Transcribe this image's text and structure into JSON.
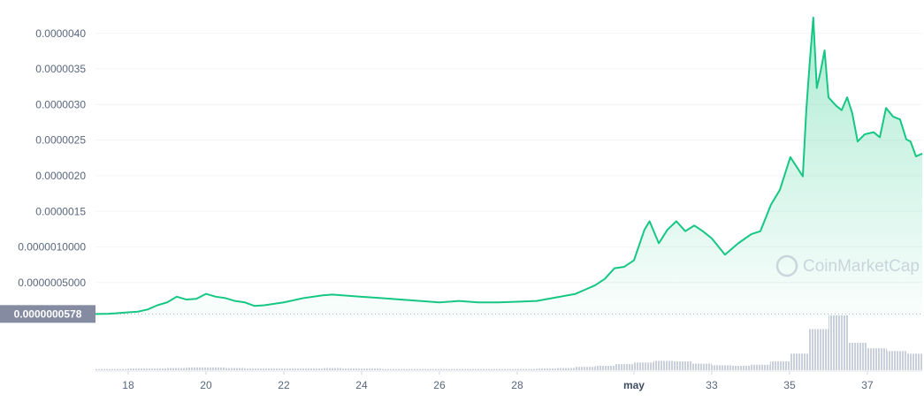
{
  "chart_data": {
    "type": "line",
    "x": [
      17.16,
      17.5,
      17.75,
      18.0,
      18.25,
      18.5,
      18.75,
      19.0,
      19.25,
      19.5,
      19.75,
      20.0,
      20.25,
      20.5,
      20.75,
      21.0,
      21.25,
      21.5,
      21.75,
      22.0,
      22.5,
      23.0,
      23.25,
      23.5,
      24.0,
      24.5,
      25.0,
      25.5,
      26.0,
      26.5,
      27.0,
      27.5,
      28.0,
      28.5,
      29.0,
      29.5,
      29.75,
      30.0,
      30.25,
      30.5,
      30.75,
      31.0,
      31.27,
      31.4,
      31.64,
      31.86,
      32.09,
      32.32,
      32.55,
      32.77,
      33.0,
      33.34,
      33.68,
      34.02,
      34.25,
      34.52,
      34.75,
      35.02,
      35.2,
      35.34,
      35.43,
      35.52,
      35.61,
      35.7,
      35.8,
      35.9,
      36.0,
      36.2,
      36.34,
      36.48,
      36.61,
      36.75,
      36.93,
      37.16,
      37.32,
      37.48,
      37.66,
      37.84,
      38.0,
      38.11,
      38.25,
      38.41
    ],
    "series": [
      {
        "color": "#16c784",
        "values": [
          5.8e-08,
          6e-08,
          7e-08,
          8e-08,
          9e-08,
          1.2e-07,
          1.8e-07,
          2.2e-07,
          3e-07,
          2.6e-07,
          2.7e-07,
          3.4e-07,
          3e-07,
          2.8e-07,
          2.4e-07,
          2.2e-07,
          1.7e-07,
          1.8e-07,
          2e-07,
          2.2e-07,
          2.8e-07,
          3.2e-07,
          3.3e-07,
          3.2e-07,
          3e-07,
          2.8e-07,
          2.6e-07,
          2.4e-07,
          2.2e-07,
          2.4e-07,
          2.2e-07,
          2.2e-07,
          2.3e-07,
          2.4e-07,
          2.9e-07,
          3.4e-07,
          4e-07,
          4.6e-07,
          5.5e-07,
          7e-07,
          7.2e-07,
          8.1e-07,
          1.24e-06,
          1.36e-06,
          1.05e-06,
          1.24e-06,
          1.36e-06,
          1.22e-06,
          1.3e-06,
          1.22e-06,
          1.12e-06,
          8.9e-07,
          1.05e-06,
          1.18e-06,
          1.22e-06,
          1.59e-06,
          1.8e-06,
          2.26e-06,
          2.11e-06,
          1.99e-06,
          2.92e-06,
          3.6e-06,
          4.22e-06,
          3.23e-06,
          3.47e-06,
          3.76e-06,
          3.1e-06,
          2.98e-06,
          2.92e-06,
          3.1e-06,
          2.88e-06,
          2.48e-06,
          2.58e-06,
          2.61e-06,
          2.54e-06,
          2.95e-06,
          2.83e-06,
          2.79e-06,
          2.51e-06,
          2.48e-06,
          2.27e-06,
          2.31e-06
        ]
      }
    ],
    "xlim": [
      17.16,
      38.41
    ],
    "xticks": [
      18,
      20,
      22,
      24,
      26,
      28,
      {
        "value": 31,
        "label": "may"
      },
      33,
      35,
      37
    ],
    "ylim": [
      0,
      4.4e-06
    ],
    "yticks": [
      {
        "value": 5e-07,
        "label": "0.0000005000"
      },
      {
        "value": 1e-06,
        "label": "0.0000010000"
      },
      {
        "value": 1.5e-06,
        "label": "0.0000015"
      },
      {
        "value": 2e-06,
        "label": "0.0000020"
      },
      {
        "value": 2.5e-06,
        "label": "0.0000025"
      },
      {
        "value": 3e-06,
        "label": "0.0000030"
      },
      {
        "value": 3.5e-06,
        "label": "0.0000035"
      },
      {
        "value": 4e-06,
        "label": "0.0000040"
      }
    ],
    "grid": true,
    "price_marker": {
      "value": 5.78e-08,
      "label": "0.0000000578"
    },
    "volume": {
      "color": "#c9cfdb",
      "x": [
        17.25,
        17.75,
        18.25,
        18.75,
        19.25,
        19.75,
        20.25,
        20.75,
        21.25,
        21.75,
        22.25,
        22.75,
        23.25,
        23.75,
        24.25,
        24.75,
        25.25,
        25.75,
        26.25,
        26.75,
        27.25,
        27.75,
        28.25,
        28.75,
        29.25,
        29.75,
        30.25,
        30.75,
        31.25,
        31.75,
        32.25,
        32.75,
        33.25,
        33.75,
        34.25,
        34.75,
        35.25,
        35.75,
        36.25,
        36.75,
        37.25,
        37.75,
        38.25
      ],
      "values": [
        2,
        2,
        3,
        3,
        4,
        5,
        5,
        4,
        3,
        3,
        3,
        3,
        4,
        3,
        3,
        2,
        2,
        2,
        2,
        2,
        2,
        2,
        2,
        3,
        4,
        6,
        8,
        11,
        14,
        17,
        16,
        12,
        9,
        8,
        10,
        16,
        30,
        75,
        100,
        50,
        40,
        35,
        30
      ],
      "ylim": [
        0,
        100
      ]
    },
    "watermark": "CoinMarketCap"
  }
}
